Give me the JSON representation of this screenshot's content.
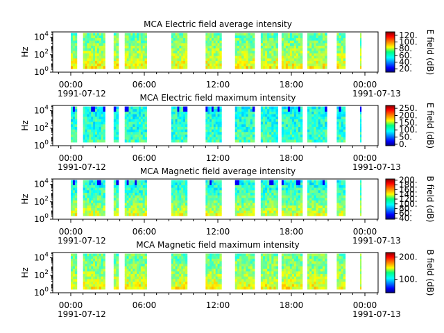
{
  "chart_data": [
    {
      "type": "heatmap",
      "title": "MCA  Electric field average intensity",
      "ylabel": "Hz",
      "yscale": "log",
      "yticks": [
        "10^4",
        "10^2",
        "10^0"
      ],
      "ylim": [
        1,
        40000
      ],
      "xlabel": "",
      "xticks": [
        "00:00",
        "06:00",
        "12:00",
        "18:00",
        "00:00"
      ],
      "xdates": [
        "1991-07-12",
        "1991-07-13"
      ],
      "xlim": [
        "1991-07-12T00:00",
        "1991-07-13T00:00"
      ],
      "colorbar": {
        "label": "E field (dB)",
        "ticks": [
          "120.",
          "100.",
          "80.",
          "60.",
          "40.",
          "20."
        ],
        "range": [
          10,
          130
        ]
      },
      "data_blocks_hours": [
        [
          0.0,
          0.5
        ],
        [
          1.0,
          2.8
        ],
        [
          3.5,
          3.9
        ],
        [
          4.4,
          6.2
        ],
        [
          8.2,
          9.5
        ],
        [
          11.0,
          12.3
        ],
        [
          13.4,
          15.0
        ],
        [
          15.5,
          16.9
        ],
        [
          17.2,
          18.9
        ],
        [
          19.3,
          20.9
        ],
        [
          21.7,
          22.4
        ],
        [
          23.6,
          23.7
        ]
      ],
      "colormap": "jet"
    },
    {
      "type": "heatmap",
      "title": "MCA  Electric field maximum intensity",
      "ylabel": "Hz",
      "yscale": "log",
      "yticks": [
        "10^4",
        "10^2",
        "10^0"
      ],
      "ylim": [
        1,
        40000
      ],
      "xlabel": "",
      "xticks": [
        "00:00",
        "06:00",
        "12:00",
        "18:00",
        "00:00"
      ],
      "xdates": [
        "1991-07-12",
        "1991-07-13"
      ],
      "xlim": [
        "1991-07-12T00:00",
        "1991-07-13T00:00"
      ],
      "colorbar": {
        "label": "E field (dB)",
        "ticks": [
          "250.",
          "200.",
          "150.",
          "100.",
          "50.",
          "0."
        ],
        "range": [
          -10,
          270
        ]
      },
      "data_blocks_hours": [
        [
          0.0,
          0.5
        ],
        [
          1.0,
          2.8
        ],
        [
          3.5,
          3.9
        ],
        [
          4.4,
          6.2
        ],
        [
          8.2,
          9.5
        ],
        [
          11.0,
          12.3
        ],
        [
          13.4,
          15.0
        ],
        [
          15.5,
          16.9
        ],
        [
          17.2,
          18.9
        ],
        [
          19.3,
          20.9
        ],
        [
          21.7,
          22.4
        ],
        [
          23.6,
          23.7
        ]
      ],
      "colormap": "jet"
    },
    {
      "type": "heatmap",
      "title": "MCA  Magnetic field average intensity",
      "ylabel": "Hz",
      "yscale": "log",
      "yticks": [
        "10^4",
        "10^2",
        "10^0"
      ],
      "ylim": [
        1,
        40000
      ],
      "xlabel": "",
      "xticks": [
        "00:00",
        "06:00",
        "12:00",
        "18:00",
        "00:00"
      ],
      "xdates": [
        "1991-07-12",
        "1991-07-13"
      ],
      "xlim": [
        "1991-07-12T00:00",
        "1991-07-13T00:00"
      ],
      "colorbar": {
        "label": "B field (dB)",
        "ticks": [
          "200.",
          "180.",
          "160.",
          "140.",
          "120.",
          "100.",
          "80.",
          "60.",
          "40."
        ],
        "range": [
          35,
          205
        ]
      },
      "data_blocks_hours": [
        [
          0.0,
          0.5
        ],
        [
          1.0,
          2.8
        ],
        [
          3.5,
          3.9
        ],
        [
          4.4,
          6.2
        ],
        [
          8.2,
          9.5
        ],
        [
          11.0,
          12.3
        ],
        [
          13.4,
          15.0
        ],
        [
          15.5,
          16.9
        ],
        [
          17.2,
          18.9
        ],
        [
          19.3,
          20.9
        ],
        [
          21.7,
          22.4
        ],
        [
          23.6,
          23.7
        ]
      ],
      "colormap": "jet"
    },
    {
      "type": "heatmap",
      "title": "MCA  Magnetic field maximum intensity",
      "ylabel": "Hz",
      "yscale": "log",
      "yticks": [
        "10^4",
        "10^2",
        "10^0"
      ],
      "ylim": [
        1,
        40000
      ],
      "xlabel": "",
      "xticks": [
        "00:00",
        "06:00",
        "12:00",
        "18:00",
        "00:00"
      ],
      "xdates": [
        "1991-07-12",
        "1991-07-13"
      ],
      "xlim": [
        "1991-07-12T00:00",
        "1991-07-13T00:00"
      ],
      "colorbar": {
        "label": "B field (dB)",
        "ticks": [
          "200.",
          "100."
        ],
        "range": [
          40,
          220
        ]
      },
      "data_blocks_hours": [
        [
          0.0,
          0.5
        ],
        [
          1.0,
          2.8
        ],
        [
          3.5,
          3.9
        ],
        [
          4.4,
          6.2
        ],
        [
          8.2,
          9.5
        ],
        [
          11.0,
          12.3
        ],
        [
          13.4,
          15.0
        ],
        [
          15.5,
          16.9
        ],
        [
          17.2,
          18.9
        ],
        [
          19.3,
          20.9
        ],
        [
          21.7,
          22.4
        ],
        [
          23.6,
          23.7
        ]
      ],
      "colormap": "jet"
    }
  ]
}
